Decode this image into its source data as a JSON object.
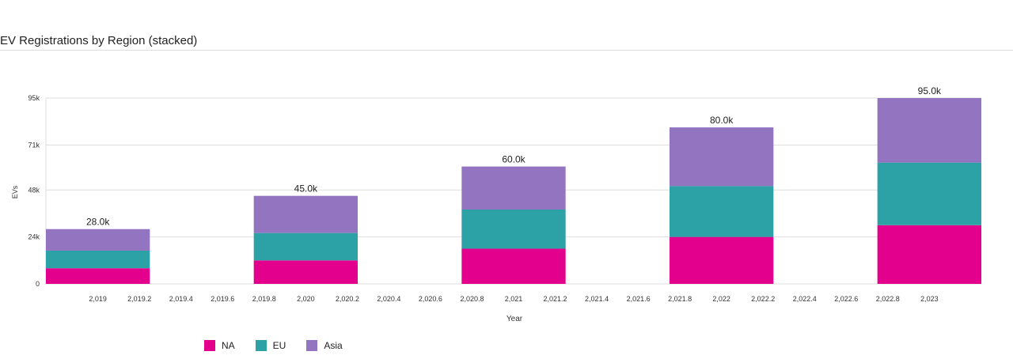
{
  "page": {
    "title": "EV Registrations by Region (stacked)"
  },
  "colors": {
    "NA": "#e3008c",
    "EU": "#2ca1a6",
    "Asia": "#9374c0",
    "grid": "#dddddd"
  },
  "chart_data": {
    "type": "bar",
    "stacked": true,
    "title": "EV Registrations by Region (stacked)",
    "xlabel": "Year",
    "ylabel": "EVs",
    "categories": [
      "2019",
      "2020",
      "2021",
      "2022",
      "2023"
    ],
    "x": [
      2019,
      2020,
      2021,
      2022,
      2023
    ],
    "series": [
      {
        "name": "NA",
        "values": [
          8000,
          12000,
          18000,
          24000,
          30000
        ]
      },
      {
        "name": "EU",
        "values": [
          9000,
          14000,
          20000,
          26000,
          32000
        ]
      },
      {
        "name": "Asia",
        "values": [
          11000,
          19000,
          22000,
          30000,
          33000
        ]
      }
    ],
    "totals": [
      "28.0k",
      "45.0k",
      "60.0k",
      "80.0k",
      "95.0k"
    ],
    "ylim": [
      0,
      95000
    ],
    "yticks": [
      {
        "value": 0,
        "label": "0"
      },
      {
        "value": 24000,
        "label": "24k"
      },
      {
        "value": 48000,
        "label": "48k"
      },
      {
        "value": 71000,
        "label": "71k"
      },
      {
        "value": 95000,
        "label": "95k"
      }
    ],
    "xlim": [
      2018.75,
      2023.25
    ],
    "xticks": [
      {
        "value": 2019,
        "label": "2,019"
      },
      {
        "value": 2019.2,
        "label": "2,019.2"
      },
      {
        "value": 2019.4,
        "label": "2,019.4"
      },
      {
        "value": 2019.6,
        "label": "2,019.6"
      },
      {
        "value": 2019.8,
        "label": "2,019.8"
      },
      {
        "value": 2020,
        "label": "2,020"
      },
      {
        "value": 2020.2,
        "label": "2,020.2"
      },
      {
        "value": 2020.4,
        "label": "2,020.4"
      },
      {
        "value": 2020.6,
        "label": "2,020.6"
      },
      {
        "value": 2020.8,
        "label": "2,020.8"
      },
      {
        "value": 2021,
        "label": "2,021"
      },
      {
        "value": 2021.2,
        "label": "2,021.2"
      },
      {
        "value": 2021.4,
        "label": "2,021.4"
      },
      {
        "value": 2021.6,
        "label": "2,021.6"
      },
      {
        "value": 2021.8,
        "label": "2,021.8"
      },
      {
        "value": 2022,
        "label": "2,022"
      },
      {
        "value": 2022.2,
        "label": "2,022.2"
      },
      {
        "value": 2022.4,
        "label": "2,022.4"
      },
      {
        "value": 2022.6,
        "label": "2,022.6"
      },
      {
        "value": 2022.8,
        "label": "2,022.8"
      },
      {
        "value": 2023,
        "label": "2,023"
      }
    ],
    "grid": true,
    "legend_position": "bottom-left"
  }
}
